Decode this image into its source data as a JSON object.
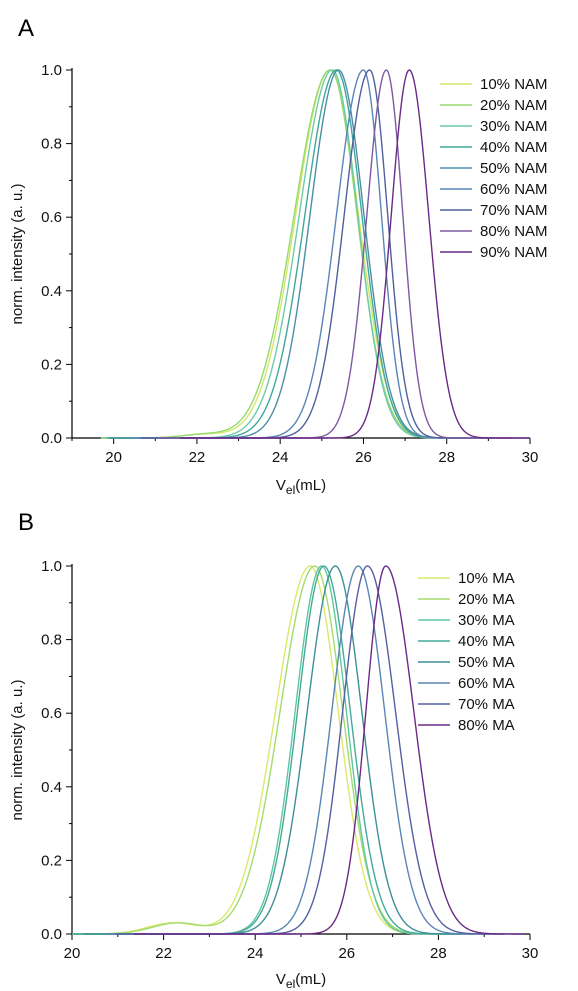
{
  "chart_data": [
    {
      "type": "line",
      "panel_label": "A",
      "xlabel_main": "V",
      "xlabel_sub": "el",
      "xlabel_tail": "(mL)",
      "ylabel": "norm. intensity (a. u.)",
      "xlim": [
        19,
        30
      ],
      "ylim": [
        0,
        1
      ],
      "xticks": [
        "20",
        "22",
        "24",
        "26",
        "28",
        "30"
      ],
      "yticks": [
        "0.0",
        "0.2",
        "0.4",
        "0.6",
        "0.8",
        "1.0"
      ],
      "legend_position": "top-right",
      "series": [
        {
          "name": "10% NAM",
          "color": "#d4e66a",
          "peak": 25.2,
          "wl": 1.15,
          "wr": 0.95,
          "shoulder": 0.01
        },
        {
          "name": "20% NAM",
          "color": "#96d96e",
          "peak": 25.2,
          "wl": 1.2,
          "wr": 0.9,
          "shoulder": 0.01
        },
        {
          "name": "30% NAM",
          "color": "#6ecba8",
          "peak": 25.25,
          "wl": 1.1,
          "wr": 0.85,
          "shoulder": 0.0
        },
        {
          "name": "40% NAM",
          "color": "#3fa89a",
          "peak": 25.35,
          "wl": 1.05,
          "wr": 0.85,
          "shoulder": 0.0
        },
        {
          "name": "50% NAM",
          "color": "#4b8fa6",
          "peak": 25.4,
          "wl": 0.95,
          "wr": 0.85,
          "shoulder": 0.0
        },
        {
          "name": "60% NAM",
          "color": "#5a85b8",
          "peak": 26.0,
          "wl": 0.9,
          "wr": 0.6,
          "shoulder": 0.0
        },
        {
          "name": "70% NAM",
          "color": "#50609c",
          "peak": 26.15,
          "wl": 0.85,
          "wr": 0.6,
          "shoulder": 0.0
        },
        {
          "name": "80% NAM",
          "color": "#7c5aa0",
          "peak": 26.55,
          "wl": 0.65,
          "wr": 0.55,
          "shoulder": 0.0
        },
        {
          "name": "90% NAM",
          "color": "#6a2a86",
          "peak": 27.1,
          "wl": 0.6,
          "wr": 0.65,
          "shoulder": 0.0
        }
      ]
    },
    {
      "type": "line",
      "panel_label": "B",
      "xlabel_main": "V",
      "xlabel_sub": "el",
      "xlabel_tail": "(mL)",
      "ylabel": "norm. intensity (a. u.)",
      "xlim": [
        20,
        30
      ],
      "ylim": [
        0,
        1
      ],
      "xticks": [
        "20",
        "22",
        "24",
        "26",
        "28",
        "30"
      ],
      "yticks": [
        "0.0",
        "0.2",
        "0.4",
        "0.6",
        "0.8",
        "1.0"
      ],
      "legend_position": "top-right",
      "series": [
        {
          "name": "10% MA",
          "color": "#dbe86a",
          "peak": 25.2,
          "wl": 1.05,
          "wr": 0.85,
          "shoulder": 0.03
        },
        {
          "name": "20% MA",
          "color": "#a3dc6e",
          "peak": 25.3,
          "wl": 1.05,
          "wr": 0.85,
          "shoulder": 0.03
        },
        {
          "name": "30% MA",
          "color": "#5fc7a0",
          "peak": 25.45,
          "wl": 0.8,
          "wr": 0.75,
          "shoulder": 0.0
        },
        {
          "name": "40% MA",
          "color": "#45a99a",
          "peak": 25.5,
          "wl": 0.8,
          "wr": 0.8,
          "shoulder": 0.0
        },
        {
          "name": "50% MA",
          "color": "#3d8f98",
          "peak": 25.75,
          "wl": 0.85,
          "wr": 0.8,
          "shoulder": 0.0
        },
        {
          "name": "60% MA",
          "color": "#5a86b4",
          "peak": 26.25,
          "wl": 0.8,
          "wr": 0.8,
          "shoulder": 0.0
        },
        {
          "name": "70% MA",
          "color": "#565fa0",
          "peak": 26.45,
          "wl": 0.75,
          "wr": 0.85,
          "shoulder": 0.0
        },
        {
          "name": "80% MA",
          "color": "#6a2a86",
          "peak": 26.85,
          "wl": 0.6,
          "wr": 0.85,
          "shoulder": 0.0
        }
      ]
    }
  ]
}
